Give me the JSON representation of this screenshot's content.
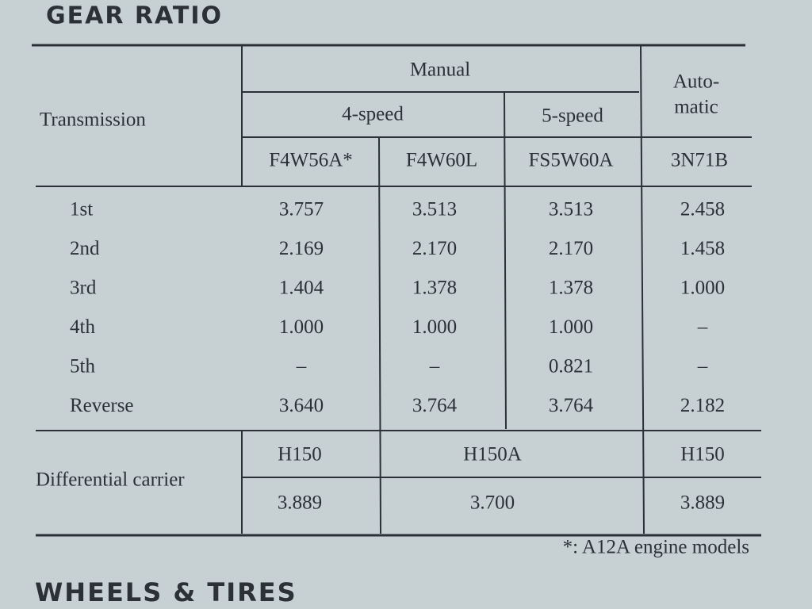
{
  "header": {
    "title": "GEAR RATIO"
  },
  "table": {
    "corner": "Transmission",
    "manual": "Manual",
    "four_speed": "4-speed",
    "five_speed": "5-speed",
    "automatic": [
      "Auto-",
      "matic"
    ],
    "models": [
      "F4W56A*",
      "F4W60L",
      "FS5W60A",
      "3N71B"
    ],
    "rows": [
      [
        "1st",
        "3.757",
        "3.513",
        "3.513",
        "2.458"
      ],
      [
        "2nd",
        "2.169",
        "2.170",
        "2.170",
        "1.458"
      ],
      [
        "3rd",
        "1.404",
        "1.378",
        "1.378",
        "1.000"
      ],
      [
        "4th",
        "1.000",
        "1.000",
        "1.000",
        "–"
      ],
      [
        "5th",
        "–",
        "–",
        "0.821",
        "–"
      ],
      [
        "Reverse",
        "3.640",
        "3.764",
        "3.764",
        "2.182"
      ]
    ],
    "differential": {
      "label": "Differential carrier",
      "carriers": [
        "H150",
        "H150A",
        "H150"
      ],
      "ratios": [
        "3.889",
        "3.700",
        "3.889"
      ]
    }
  },
  "footnote": "*: A12A engine models",
  "next_section": "WHEELS & TIRES"
}
